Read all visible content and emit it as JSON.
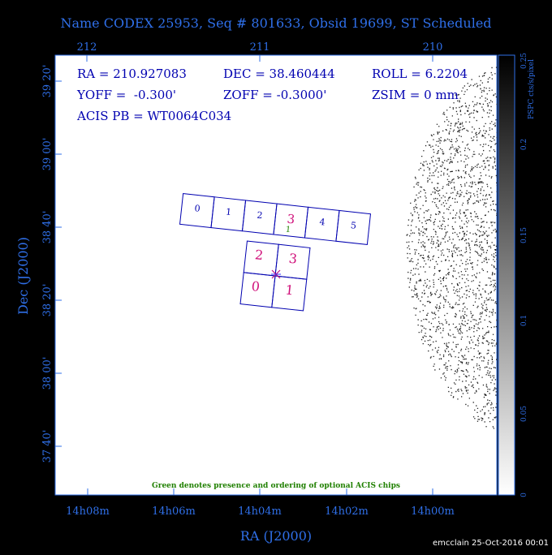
{
  "title": "Name CODEX 25953, Seq # 801633, Obsid 19699, ST Scheduled",
  "top_axis": [
    "212",
    "211",
    "210"
  ],
  "left_axis": [
    "39 20'",
    "39 00'",
    "38 40'",
    "38 20'",
    "38 00'",
    "37 40'"
  ],
  "bottom_axis": [
    "14h08m",
    "14h06m",
    "14h04m",
    "14h02m",
    "14h00m"
  ],
  "x_label": "RA (J2000)",
  "y_label": "Dec (J2000)",
  "info": {
    "ra": "RA = 210.927083",
    "dec": "DEC = 38.460444",
    "roll": "ROLL = 6.2204",
    "yoff": "YOFF =  -0.300'",
    "zoff": "ZOFF = -0.3000'",
    "zsim": "ZSIM = 0 mm",
    "pb": "ACIS PB = WT0064C034"
  },
  "acis_s": [
    "0",
    "1",
    "2",
    "3",
    "4",
    "5"
  ],
  "acis_s_optional": "1",
  "acis_i": [
    "2",
    "3",
    "0",
    "1"
  ],
  "note": "Green denotes presence and ordering of optional ACIS chips",
  "colorbar": {
    "label": "PSPC cts/s/pixel",
    "ticks": [
      "0",
      "0.05",
      "0.1",
      "0.15",
      "0.2",
      "0.25"
    ]
  },
  "footer": "emcclain 25-Oct-2016 00:01"
}
